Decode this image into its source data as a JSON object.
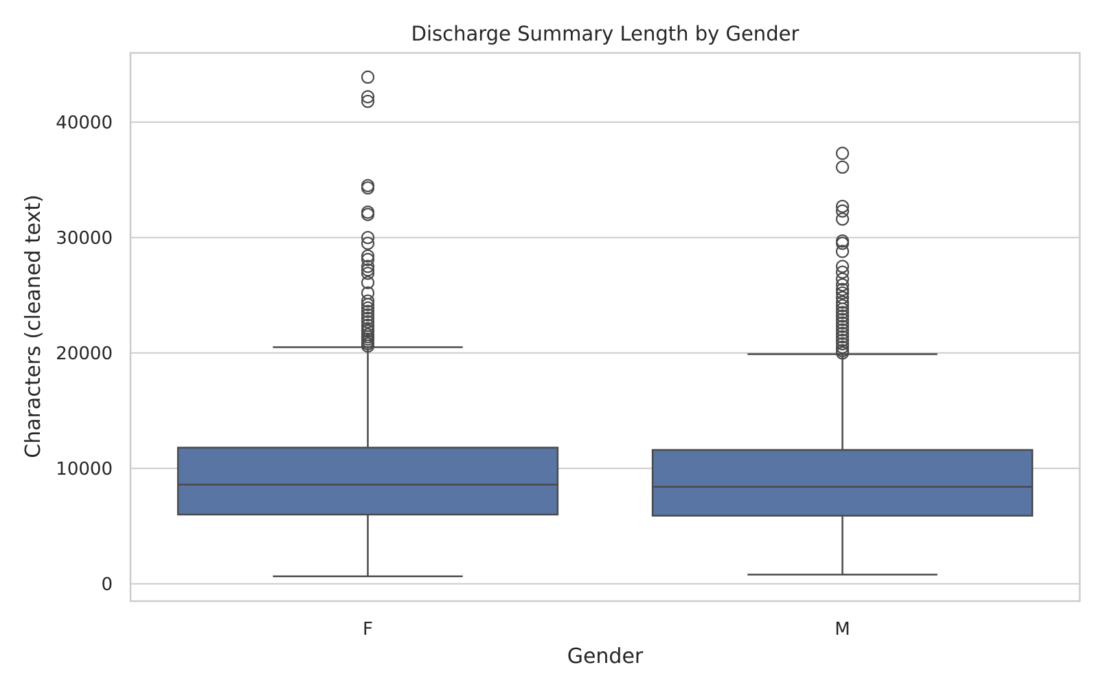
{
  "chart_data": {
    "type": "box",
    "title": "Discharge Summary Length by Gender",
    "xlabel": "Gender",
    "ylabel": "Characters (cleaned text)",
    "categories": [
      "F",
      "M"
    ],
    "ylim": [
      -1500,
      46000
    ],
    "yticks": [
      0,
      10000,
      20000,
      30000,
      40000
    ],
    "grid": true,
    "colors": {
      "box": "#5875a4",
      "line": "#4a4a4a",
      "grid": "#cccccc",
      "frame": "#cccccc"
    },
    "boxes": [
      {
        "category": "F",
        "whisker_low": 650,
        "q1": 6000,
        "median": 8600,
        "q3": 11800,
        "whisker_high": 20500,
        "outliers": [
          20600,
          20800,
          21000,
          21200,
          21400,
          21600,
          21900,
          22100,
          22400,
          22700,
          23000,
          23300,
          23600,
          23900,
          24200,
          24500,
          25200,
          26100,
          26900,
          27200,
          27500,
          28100,
          28400,
          29500,
          30000,
          32000,
          32200,
          34300,
          34500,
          41800,
          42200,
          43900
        ]
      },
      {
        "category": "M",
        "whisker_low": 800,
        "q1": 5900,
        "median": 8400,
        "q3": 11600,
        "whisker_high": 19900,
        "outliers": [
          20000,
          20200,
          20500,
          20800,
          21100,
          21400,
          21700,
          22000,
          22300,
          22600,
          22900,
          23200,
          23500,
          23800,
          24100,
          24400,
          24800,
          25200,
          25500,
          25900,
          26400,
          27000,
          27500,
          28800,
          29500,
          29700,
          31600,
          32300,
          32700,
          36100,
          37300
        ]
      }
    ]
  }
}
